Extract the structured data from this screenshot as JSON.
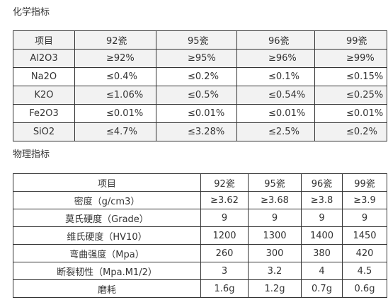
{
  "chemical": {
    "title": "化学指标",
    "header": [
      "项目",
      "92瓷",
      "95瓷",
      "96瓷",
      "99瓷"
    ],
    "rows": [
      [
        "Al2O3",
        "≥92%",
        "≥95%",
        "≥96%",
        "≥99%"
      ],
      [
        "Na2O",
        "≤0.4%",
        "≤0.2%",
        "≤0.1%",
        "≤0.15%"
      ],
      [
        "K2O",
        "≤1.06%",
        "≤0.5%",
        "≤0.54%",
        "≤0.25%"
      ],
      [
        "Fe2O3",
        "≤0.01%",
        "≤0.01%",
        "≤0.01%",
        "≤0.01%"
      ],
      [
        "SiO2",
        "≤4.7%",
        "≤3.28%",
        "≤2.5%",
        "≤0.2%"
      ]
    ]
  },
  "physical": {
    "title": "物理指标",
    "header": [
      "项目",
      "92瓷",
      "95瓷",
      "96瓷",
      "99瓷"
    ],
    "rows": [
      [
        "密度（g/cm3）",
        "≥3.62",
        "≥3.68",
        "≥3.8",
        "≥3.9"
      ],
      [
        "莫氏硬度（Grade）",
        "9",
        "9",
        "9",
        "9"
      ],
      [
        "维氏硬度（HV10）",
        "1200",
        "1300",
        "1400",
        "1450"
      ],
      [
        "弯曲强度（Mpa）",
        "260",
        "300",
        "380",
        "420"
      ],
      [
        "断裂韧性（Mpa.M1/2）",
        "3",
        "3.2",
        "4",
        "4.5"
      ],
      [
        "磨耗",
        "1.6g",
        "1.2g",
        "0.7g",
        "0.6g"
      ]
    ]
  }
}
